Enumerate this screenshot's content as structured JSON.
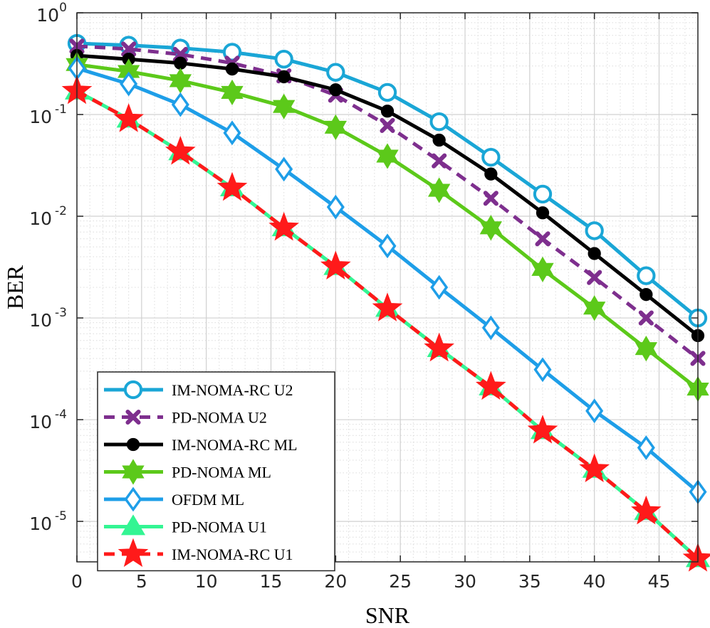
{
  "chart_data": {
    "type": "line",
    "title": "",
    "xlabel": "SNR",
    "ylabel": "BER",
    "xlim": [
      0,
      48
    ],
    "ylim": [
      4e-06,
      1
    ],
    "yscale": "log",
    "grid": true,
    "legend_position": "bottom-left",
    "x_ticks": [
      0,
      5,
      10,
      15,
      20,
      25,
      30,
      35,
      40,
      45
    ],
    "x_tick_labels": [
      "0",
      "5",
      "10",
      "15",
      "20",
      "25",
      "30",
      "35",
      "40",
      "45"
    ],
    "y_ticks": [
      {
        "value": 1,
        "base": "10",
        "exp": "0"
      },
      {
        "value": 0.1,
        "base": "10",
        "exp": "-1"
      },
      {
        "value": 0.01,
        "base": "10",
        "exp": "-2"
      },
      {
        "value": 0.001,
        "base": "10",
        "exp": "-3"
      },
      {
        "value": 0.0001,
        "base": "10",
        "exp": "-4"
      },
      {
        "value": 1e-05,
        "base": "10",
        "exp": "-5"
      }
    ],
    "x": [
      0,
      4,
      8,
      12,
      16,
      20,
      24,
      28,
      32,
      36,
      40,
      44,
      48
    ],
    "series": [
      {
        "name": "IM-NOMA-RC U2",
        "color": "#1AA6D6",
        "dash": false,
        "marker": "circle",
        "values": [
          0.5,
          0.48,
          0.45,
          0.41,
          0.35,
          0.26,
          0.165,
          0.085,
          0.038,
          0.0165,
          0.0072,
          0.0026,
          0.001
        ]
      },
      {
        "name": "PD-NOMA U2",
        "color": "#7E2F8E",
        "dash": true,
        "marker": "x",
        "values": [
          0.47,
          0.44,
          0.39,
          0.32,
          0.24,
          0.155,
          0.078,
          0.035,
          0.015,
          0.006,
          0.0025,
          0.001,
          0.0004
        ]
      },
      {
        "name": "IM-NOMA-RC ML",
        "color": "#000000",
        "dash": false,
        "marker": "dot",
        "values": [
          0.38,
          0.35,
          0.32,
          0.28,
          0.235,
          0.175,
          0.108,
          0.056,
          0.026,
          0.0108,
          0.0043,
          0.0017,
          0.00067
        ]
      },
      {
        "name": "PD-NOMA ML",
        "color": "#5CC91A",
        "dash": false,
        "marker": "hexagram",
        "values": [
          0.31,
          0.265,
          0.215,
          0.165,
          0.12,
          0.075,
          0.039,
          0.018,
          0.0077,
          0.003,
          0.00125,
          0.0005,
          0.0002
        ]
      },
      {
        "name": "OFDM ML",
        "color": "#1E9EE8",
        "dash": false,
        "marker": "diamond",
        "values": [
          0.285,
          0.2,
          0.125,
          0.066,
          0.029,
          0.0123,
          0.0051,
          0.002,
          0.0008,
          0.00031,
          0.000122,
          5.3e-05,
          1.95e-05
        ]
      },
      {
        "name": "PD-NOMA U1",
        "color": "#33F593",
        "dash": false,
        "marker": "triangle",
        "values": [
          0.17,
          0.09,
          0.043,
          0.019,
          0.0077,
          0.0032,
          0.00124,
          0.0005,
          0.00021,
          7.8e-05,
          3.25e-05,
          1.25e-05,
          4.3e-06
        ]
      },
      {
        "name": "IM-NOMA-RC U1",
        "color": "#FF1A1A",
        "dash": true,
        "marker": "star",
        "values": [
          0.17,
          0.09,
          0.043,
          0.019,
          0.0077,
          0.0032,
          0.00124,
          0.0005,
          0.00021,
          7.8e-05,
          3.25e-05,
          1.25e-05,
          4.3e-06
        ]
      }
    ]
  }
}
